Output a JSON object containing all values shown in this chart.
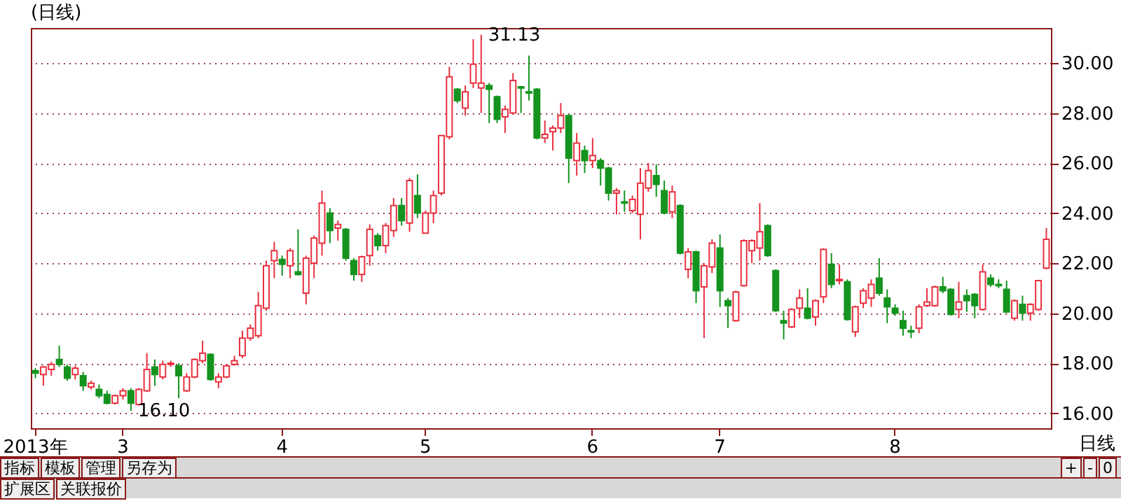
{
  "chart_data": {
    "type": "candlestick",
    "title": "(日线)",
    "categories": [
      "2013年",
      null,
      null,
      null,
      null,
      null,
      null,
      null,
      null,
      null,
      null,
      "3",
      null,
      null,
      null,
      null,
      null,
      null,
      null,
      null,
      null,
      null,
      null,
      null,
      null,
      null,
      null,
      null,
      null,
      null,
      null,
      "4",
      null,
      null,
      null,
      null,
      null,
      null,
      null,
      null,
      null,
      null,
      null,
      null,
      null,
      null,
      null,
      null,
      null,
      "5",
      null,
      null,
      null,
      null,
      null,
      null,
      null,
      null,
      null,
      null,
      null,
      null,
      null,
      null,
      null,
      null,
      null,
      null,
      null,
      null,
      "6",
      null,
      null,
      null,
      null,
      null,
      null,
      null,
      null,
      null,
      null,
      null,
      null,
      null,
      null,
      null,
      "7",
      null,
      null,
      null,
      null,
      null,
      null,
      null,
      null,
      null,
      null,
      null,
      null,
      null,
      null,
      null,
      null,
      null,
      null,
      null,
      null,
      null,
      "8",
      null,
      null,
      null,
      null,
      null,
      null,
      null,
      null,
      null,
      null,
      null,
      null,
      null,
      null,
      null,
      null,
      null,
      null,
      null
    ],
    "ohlc": [
      [
        17.7,
        17.8,
        17.4,
        17.6
      ],
      [
        17.55,
        17.9,
        17.1,
        17.85
      ],
      [
        17.75,
        18.05,
        17.5,
        17.95
      ],
      [
        18.15,
        18.7,
        17.85,
        17.95
      ],
      [
        17.85,
        17.95,
        17.3,
        17.4
      ],
      [
        17.55,
        17.9,
        17.35,
        17.8
      ],
      [
        17.5,
        17.65,
        16.9,
        17.1
      ],
      [
        17.05,
        17.3,
        16.95,
        17.2
      ],
      [
        16.95,
        17.15,
        16.6,
        16.7
      ],
      [
        16.75,
        16.9,
        16.35,
        16.4
      ],
      [
        16.4,
        16.75,
        16.35,
        16.7
      ],
      [
        16.7,
        17.0,
        16.55,
        16.9
      ],
      [
        16.9,
        17.0,
        16.1,
        16.4
      ],
      [
        16.35,
        17.0,
        16.3,
        16.95
      ],
      [
        16.9,
        18.4,
        16.85,
        17.75
      ],
      [
        17.85,
        18.15,
        17.1,
        17.55
      ],
      [
        17.45,
        18.1,
        17.35,
        17.95
      ],
      [
        17.95,
        18.1,
        17.85,
        18.0
      ],
      [
        17.9,
        18.0,
        16.6,
        17.5
      ],
      [
        16.9,
        17.6,
        16.85,
        17.45
      ],
      [
        17.45,
        18.2,
        17.4,
        18.15
      ],
      [
        18.1,
        18.9,
        18.0,
        18.4
      ],
      [
        18.35,
        18.4,
        17.3,
        17.35
      ],
      [
        17.25,
        17.6,
        17.0,
        17.45
      ],
      [
        17.45,
        17.95,
        17.4,
        17.9
      ],
      [
        17.95,
        18.3,
        17.9,
        18.1
      ],
      [
        18.3,
        19.3,
        18.2,
        19.0
      ],
      [
        19.0,
        19.55,
        18.9,
        19.4
      ],
      [
        19.1,
        20.85,
        19.0,
        20.3
      ],
      [
        20.2,
        22.1,
        20.1,
        21.9
      ],
      [
        22.1,
        22.85,
        21.4,
        22.5
      ],
      [
        22.15,
        22.3,
        21.5,
        21.95
      ],
      [
        21.9,
        22.6,
        21.4,
        22.5
      ],
      [
        21.65,
        23.35,
        21.5,
        21.55
      ],
      [
        20.8,
        22.3,
        20.35,
        22.2
      ],
      [
        22.0,
        23.1,
        21.4,
        23.0
      ],
      [
        22.8,
        24.9,
        22.3,
        24.4
      ],
      [
        24.0,
        24.2,
        22.8,
        23.3
      ],
      [
        23.4,
        23.7,
        22.9,
        23.55
      ],
      [
        23.35,
        23.4,
        22.1,
        22.2
      ],
      [
        22.1,
        22.2,
        21.3,
        21.55
      ],
      [
        21.55,
        22.3,
        21.25,
        22.25
      ],
      [
        22.3,
        23.55,
        21.9,
        23.35
      ],
      [
        23.1,
        23.2,
        22.5,
        22.7
      ],
      [
        22.7,
        23.6,
        22.4,
        23.5
      ],
      [
        23.3,
        24.6,
        23.05,
        24.3
      ],
      [
        24.3,
        24.6,
        23.5,
        23.7
      ],
      [
        23.6,
        25.4,
        23.25,
        25.3
      ],
      [
        24.7,
        25.55,
        23.8,
        24.0
      ],
      [
        23.2,
        24.1,
        23.2,
        24.0
      ],
      [
        24.0,
        24.9,
        23.6,
        24.7
      ],
      [
        24.8,
        27.1,
        24.7,
        27.1
      ],
      [
        27.05,
        29.85,
        26.95,
        29.45
      ],
      [
        28.95,
        29.0,
        28.4,
        28.5
      ],
      [
        28.2,
        29.1,
        27.9,
        28.85
      ],
      [
        29.2,
        30.95,
        29.0,
        29.95
      ],
      [
        29.0,
        31.13,
        28.0,
        29.2
      ],
      [
        29.1,
        29.2,
        27.6,
        28.95
      ],
      [
        28.65,
        28.7,
        27.6,
        27.75
      ],
      [
        27.85,
        28.3,
        27.2,
        28.15
      ],
      [
        28.0,
        29.6,
        27.95,
        29.3
      ],
      [
        29.05,
        29.05,
        28.0,
        29.0
      ],
      [
        28.85,
        30.3,
        28.5,
        28.8
      ],
      [
        28.95,
        29.0,
        26.95,
        27.0
      ],
      [
        27.0,
        27.7,
        26.8,
        27.15
      ],
      [
        27.25,
        27.5,
        26.5,
        27.4
      ],
      [
        27.4,
        28.4,
        27.2,
        27.9
      ],
      [
        27.9,
        27.95,
        25.2,
        26.2
      ],
      [
        26.1,
        27.2,
        25.5,
        26.8
      ],
      [
        26.5,
        26.7,
        25.6,
        26.1
      ],
      [
        26.1,
        27.0,
        25.8,
        26.3
      ],
      [
        26.1,
        26.2,
        25.1,
        25.8
      ],
      [
        25.8,
        25.85,
        24.5,
        24.8
      ],
      [
        24.8,
        25.0,
        23.95,
        24.9
      ],
      [
        24.45,
        24.9,
        24.05,
        24.4
      ],
      [
        24.1,
        24.7,
        24.0,
        24.55
      ],
      [
        23.95,
        25.8,
        22.95,
        25.2
      ],
      [
        25.0,
        26.0,
        24.85,
        25.7
      ],
      [
        25.5,
        25.95,
        24.65,
        25.15
      ],
      [
        24.9,
        25.3,
        23.95,
        24.0
      ],
      [
        24.05,
        25.1,
        23.8,
        24.85
      ],
      [
        24.3,
        24.35,
        22.35,
        22.4
      ],
      [
        21.75,
        22.6,
        21.4,
        22.45
      ],
      [
        22.45,
        22.5,
        20.4,
        20.9
      ],
      [
        21.05,
        22.0,
        19.0,
        21.9
      ],
      [
        21.85,
        22.95,
        21.6,
        22.8
      ],
      [
        22.6,
        23.15,
        20.25,
        20.9
      ],
      [
        20.5,
        20.6,
        19.4,
        20.3
      ],
      [
        19.7,
        20.9,
        19.65,
        20.85
      ],
      [
        21.1,
        22.95,
        21.05,
        22.9
      ],
      [
        22.5,
        22.95,
        22.0,
        22.9
      ],
      [
        22.6,
        24.4,
        22.1,
        23.25
      ],
      [
        23.5,
        23.55,
        22.25,
        22.3
      ],
      [
        21.7,
        21.75,
        20.05,
        20.1
      ],
      [
        19.7,
        20.1,
        18.95,
        19.6
      ],
      [
        19.45,
        20.2,
        19.4,
        20.15
      ],
      [
        20.2,
        20.95,
        19.8,
        20.6
      ],
      [
        20.2,
        21.0,
        19.75,
        19.8
      ],
      [
        19.85,
        20.55,
        19.5,
        20.5
      ],
      [
        20.65,
        22.6,
        20.4,
        22.55
      ],
      [
        21.95,
        22.4,
        21.0,
        21.15
      ],
      [
        21.3,
        21.95,
        21.15,
        21.35
      ],
      [
        21.25,
        21.35,
        19.7,
        19.75
      ],
      [
        19.25,
        20.3,
        19.05,
        20.25
      ],
      [
        20.4,
        21.0,
        20.2,
        20.9
      ],
      [
        20.6,
        21.35,
        20.25,
        21.15
      ],
      [
        21.4,
        22.2,
        20.7,
        20.8
      ],
      [
        20.6,
        20.95,
        19.6,
        20.25
      ],
      [
        20.2,
        20.35,
        19.9,
        20.0
      ],
      [
        19.7,
        20.1,
        19.1,
        19.4
      ],
      [
        19.3,
        19.5,
        19.0,
        19.25
      ],
      [
        19.4,
        20.35,
        19.2,
        20.25
      ],
      [
        20.3,
        21.0,
        20.25,
        20.45
      ],
      [
        20.3,
        21.1,
        20.25,
        21.05
      ],
      [
        21.05,
        21.45,
        20.8,
        20.9
      ],
      [
        20.95,
        21.0,
        19.9,
        19.95
      ],
      [
        20.15,
        21.25,
        19.8,
        20.45
      ],
      [
        20.7,
        20.95,
        20.05,
        20.5
      ],
      [
        20.75,
        20.8,
        19.8,
        20.3
      ],
      [
        20.15,
        21.95,
        20.1,
        21.65
      ],
      [
        21.4,
        21.55,
        21.05,
        21.15
      ],
      [
        21.15,
        21.35,
        21.0,
        21.1
      ],
      [
        20.95,
        21.3,
        20.0,
        20.05
      ],
      [
        19.8,
        20.55,
        19.7,
        20.5
      ],
      [
        20.35,
        20.7,
        19.7,
        20.0
      ],
      [
        20.0,
        20.4,
        19.7,
        20.35
      ],
      [
        20.15,
        21.3,
        20.1,
        21.3
      ],
      [
        21.8,
        23.4,
        21.75,
        22.95
      ]
    ],
    "ylim": [
      15.4,
      31.4
    ],
    "yticks": [
      {
        "value": 16,
        "label": "16.00"
      },
      {
        "value": 18,
        "label": "18.00"
      },
      {
        "value": 20,
        "label": "20.00"
      },
      {
        "value": 22,
        "label": "22.00"
      },
      {
        "value": 24,
        "label": "24.00"
      },
      {
        "value": 26,
        "label": "26.00"
      },
      {
        "value": 28,
        "label": "28.00"
      },
      {
        "value": 30,
        "label": "30.00"
      }
    ],
    "grid": "y",
    "annotations": [
      "31.13",
      "16.10",
      "日线",
      "指标",
      "模板",
      "管理",
      "另存为",
      "+",
      "-",
      "0",
      "扩展区",
      "关联报价"
    ]
  }
}
